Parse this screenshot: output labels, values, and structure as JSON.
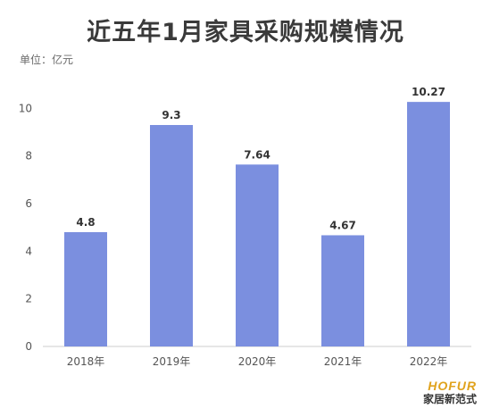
{
  "header": {
    "title": "近五年1月家具采购规模情况",
    "unit": "单位：亿元"
  },
  "chart_data": {
    "type": "bar",
    "categories": [
      "2018年",
      "2019年",
      "2020年",
      "2021年",
      "2022年"
    ],
    "values": [
      4.8,
      9.3,
      7.64,
      4.67,
      10.27
    ],
    "value_labels": [
      "4.8",
      "9.3",
      "7.64",
      "4.67",
      "10.27"
    ],
    "ylim": [
      0,
      12
    ],
    "yticks": [
      0,
      2,
      4,
      6,
      8,
      10
    ],
    "grid": false,
    "bar_color": "#7b8fdf",
    "legend": "none"
  },
  "brand": {
    "logo_en": "HOFUR",
    "logo_cn": "家居新范式"
  }
}
